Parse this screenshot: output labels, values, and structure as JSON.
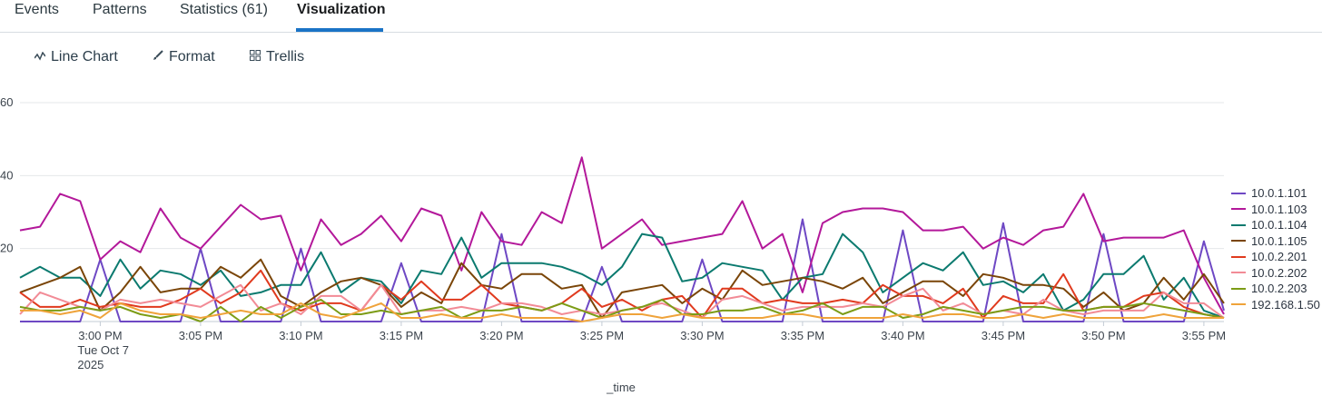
{
  "tabs": [
    {
      "label": "Events"
    },
    {
      "label": "Patterns"
    },
    {
      "label": "Statistics (61)"
    },
    {
      "label": "Visualization"
    }
  ],
  "toolbar": {
    "line_chart": "Line Chart",
    "format": "Format",
    "trellis": "Trellis"
  },
  "colors": {
    "accent": "#1a73c6"
  },
  "chart_data": {
    "type": "line",
    "xlabel": "_time",
    "ylabel": "",
    "ylim": [
      0,
      60
    ],
    "yticks": [
      20,
      40,
      60
    ],
    "x_start": "2:56 PM",
    "x_step_minutes": 1,
    "x_tick_labels": [
      {
        "minute": 4,
        "label": "3:00 PM",
        "sub": [
          "Tue Oct 7",
          "2025"
        ]
      },
      {
        "minute": 9,
        "label": "3:05 PM"
      },
      {
        "minute": 14,
        "label": "3:10 PM"
      },
      {
        "minute": 19,
        "label": "3:15 PM"
      },
      {
        "minute": 24,
        "label": "3:20 PM"
      },
      {
        "minute": 29,
        "label": "3:25 PM"
      },
      {
        "minute": 34,
        "label": "3:30 PM"
      },
      {
        "minute": 39,
        "label": "3:35 PM"
      },
      {
        "minute": 44,
        "label": "3:40 PM"
      },
      {
        "minute": 49,
        "label": "3:45 PM"
      },
      {
        "minute": 54,
        "label": "3:50 PM"
      },
      {
        "minute": 59,
        "label": "3:55 PM"
      }
    ],
    "legend_position": "right",
    "series": [
      {
        "name": "10.0.1.101",
        "color": "#6e48c4",
        "values": [
          0,
          0,
          0,
          0,
          17,
          0,
          0,
          0,
          0,
          20,
          0,
          0,
          0,
          0,
          20,
          0,
          0,
          0,
          0,
          16,
          0,
          0,
          0,
          0,
          24,
          0,
          0,
          0,
          0,
          15,
          0,
          0,
          0,
          0,
          17,
          0,
          0,
          0,
          0,
          28,
          0,
          0,
          0,
          0,
          25,
          0,
          0,
          0,
          0,
          27,
          0,
          0,
          0,
          0,
          24,
          0,
          0,
          0,
          0,
          22,
          3
        ]
      },
      {
        "name": "10.0.1.103",
        "color": "#b3189a",
        "values": [
          25,
          26,
          35,
          33,
          17,
          22,
          19,
          31,
          23,
          20,
          26,
          32,
          28,
          29,
          14,
          28,
          21,
          24,
          29,
          22,
          31,
          29,
          14,
          30,
          22,
          21,
          30,
          27,
          45,
          20,
          24,
          28,
          21,
          22,
          23,
          24,
          33,
          20,
          24,
          8,
          27,
          30,
          31,
          31,
          30,
          25,
          25,
          26,
          20,
          23,
          21,
          25,
          26,
          35,
          22,
          23,
          23,
          23,
          25,
          12,
          2
        ]
      },
      {
        "name": "10.0.1.104",
        "color": "#0b7a6f",
        "values": [
          12,
          15,
          12,
          12,
          7,
          17,
          9,
          14,
          13,
          10,
          14,
          7,
          8,
          10,
          10,
          19,
          8,
          12,
          11,
          5,
          14,
          13,
          23,
          12,
          16,
          16,
          16,
          15,
          13,
          10,
          15,
          24,
          23,
          11,
          12,
          16,
          15,
          14,
          6,
          12,
          13,
          24,
          19,
          8,
          12,
          16,
          14,
          19,
          10,
          11,
          8,
          13,
          3,
          6,
          13,
          13,
          18,
          6,
          12,
          3,
          1
        ]
      },
      {
        "name": "10.0.1.105",
        "color": "#7a4508",
        "values": [
          8,
          10,
          12,
          15,
          3,
          8,
          15,
          8,
          9,
          9,
          15,
          12,
          17,
          7,
          4,
          8,
          11,
          12,
          10,
          4,
          8,
          5,
          16,
          10,
          9,
          13,
          13,
          9,
          10,
          1,
          8,
          9,
          10,
          5,
          9,
          6,
          14,
          10,
          11,
          12,
          11,
          9,
          12,
          5,
          8,
          11,
          11,
          7,
          13,
          12,
          10,
          10,
          9,
          4,
          8,
          3,
          5,
          12,
          6,
          13,
          5
        ]
      },
      {
        "name": "10.0.2.201",
        "color": "#e03a1e",
        "values": [
          8,
          4,
          4,
          6,
          4,
          5,
          4,
          4,
          6,
          9,
          5,
          8,
          14,
          5,
          3,
          5,
          5,
          3,
          10,
          6,
          11,
          6,
          6,
          10,
          5,
          4,
          3,
          5,
          9,
          4,
          6,
          3,
          6,
          7,
          1,
          9,
          9,
          5,
          6,
          5,
          5,
          6,
          5,
          10,
          7,
          7,
          5,
          9,
          1,
          7,
          5,
          5,
          13,
          3,
          4,
          4,
          7,
          8,
          4,
          2,
          1
        ]
      },
      {
        "name": "10.0.2.202",
        "color": "#f28b96",
        "values": [
          2,
          8,
          6,
          4,
          3,
          6,
          5,
          6,
          5,
          4,
          7,
          10,
          3,
          5,
          2,
          7,
          7,
          3,
          10,
          2,
          3,
          3,
          4,
          3,
          5,
          5,
          4,
          2,
          3,
          2,
          3,
          4,
          5,
          3,
          1,
          6,
          7,
          5,
          3,
          4,
          4,
          4,
          5,
          4,
          7,
          9,
          3,
          5,
          2,
          3,
          2,
          6,
          3,
          2,
          3,
          3,
          3,
          8,
          5,
          5,
          1
        ]
      },
      {
        "name": "10.0.2.203",
        "color": "#7c9c16",
        "values": [
          4,
          3,
          3,
          4,
          3,
          4,
          2,
          1,
          2,
          0,
          4,
          0,
          4,
          1,
          4,
          6,
          2,
          2,
          3,
          2,
          3,
          4,
          1,
          3,
          3,
          4,
          3,
          5,
          3,
          1,
          3,
          4,
          6,
          2,
          2,
          3,
          3,
          4,
          2,
          3,
          5,
          2,
          4,
          4,
          1,
          2,
          4,
          3,
          2,
          3,
          4,
          4,
          3,
          3,
          4,
          4,
          5,
          4,
          3,
          2,
          1
        ]
      },
      {
        "name": "192.168.1.50",
        "color": "#efa33a",
        "values": [
          3,
          3,
          2,
          3,
          1,
          5,
          3,
          2,
          2,
          1,
          2,
          3,
          2,
          2,
          5,
          2,
          1,
          3,
          5,
          1,
          1,
          2,
          1,
          1,
          2,
          1,
          1,
          1,
          0,
          1,
          2,
          2,
          1,
          2,
          1,
          1,
          1,
          1,
          2,
          2,
          1,
          1,
          1,
          1,
          2,
          1,
          2,
          2,
          1,
          1,
          2,
          1,
          2,
          1,
          1,
          1,
          1,
          2,
          1,
          1,
          1
        ]
      }
    ]
  }
}
